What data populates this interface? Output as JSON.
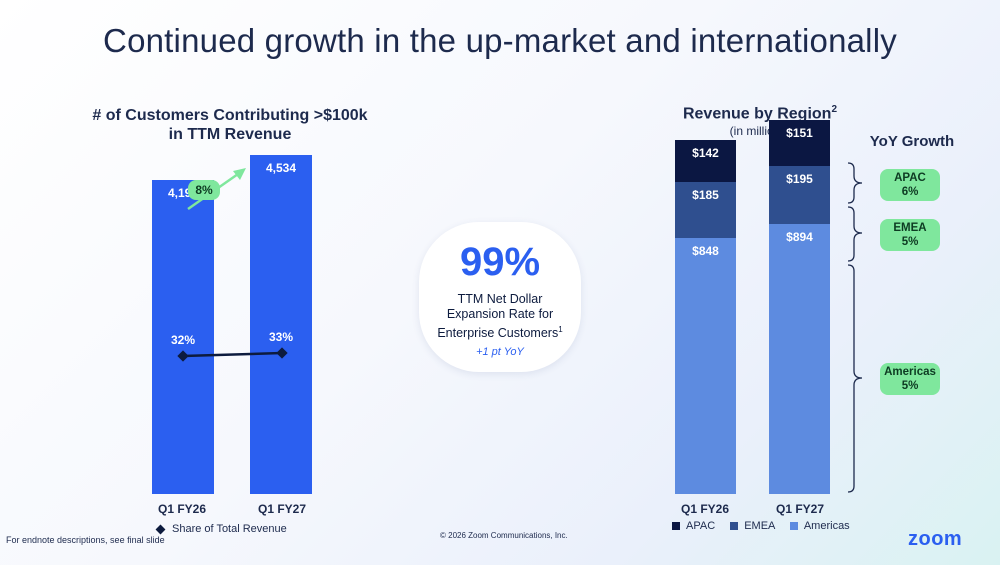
{
  "title": "Continued growth in the up-market and internationally",
  "left": {
    "title_line1": "# of Customers Contributing >$100k",
    "title_line2": "in TTM Revenue",
    "growth_pill": "8%",
    "legend": "Share of Total Revenue"
  },
  "center": {
    "big_value": "99%",
    "line1": "TTM Net Dollar",
    "line2": "Expansion Rate for",
    "line3": "Enterprise Customers",
    "footnote_mark": "1",
    "yoy": "+1 pt YoY"
  },
  "right": {
    "title": "Revenue by Region",
    "title_sup": "2",
    "subtitle": "(in millions)",
    "yoy_title": "YoY Growth",
    "pills": [
      {
        "name": "APAC",
        "value": "6%"
      },
      {
        "name": "EMEA",
        "value": "5%"
      },
      {
        "name": "Americas",
        "value": "5%"
      }
    ]
  },
  "footer": {
    "endnote": "For endnote descriptions, see final slide",
    "copyright": "© 2026 Zoom Communications, Inc.",
    "logo": "zoom"
  },
  "colors": {
    "bar_blue": "#2b5ff0",
    "apac": "#0b1742",
    "emea": "#2f4f8f",
    "americas": "#5d8be0",
    "pill_green": "#7fe79d"
  },
  "chart_data": [
    {
      "type": "bar",
      "categories": [
        "Q1 FY26",
        "Q1 FY27"
      ],
      "values": [
        4192,
        4534
      ],
      "value_labels": [
        "4,192",
        "4,534"
      ],
      "share_of_total_revenue": [
        "32%",
        "33%"
      ],
      "ylim": [
        0,
        5000
      ]
    },
    {
      "type": "bar",
      "stacked": true,
      "categories": [
        "Q1 FY26",
        "Q1 FY27"
      ],
      "series": [
        {
          "name": "APAC",
          "values": [
            142,
            151
          ],
          "labels": [
            "$142",
            "$151"
          ]
        },
        {
          "name": "EMEA",
          "values": [
            185,
            195
          ],
          "labels": [
            "$185",
            "$195"
          ]
        },
        {
          "name": "Americas",
          "values": [
            848,
            894
          ],
          "labels": [
            "$848",
            "$894"
          ]
        }
      ],
      "ylim": [
        0,
        1240
      ]
    }
  ]
}
